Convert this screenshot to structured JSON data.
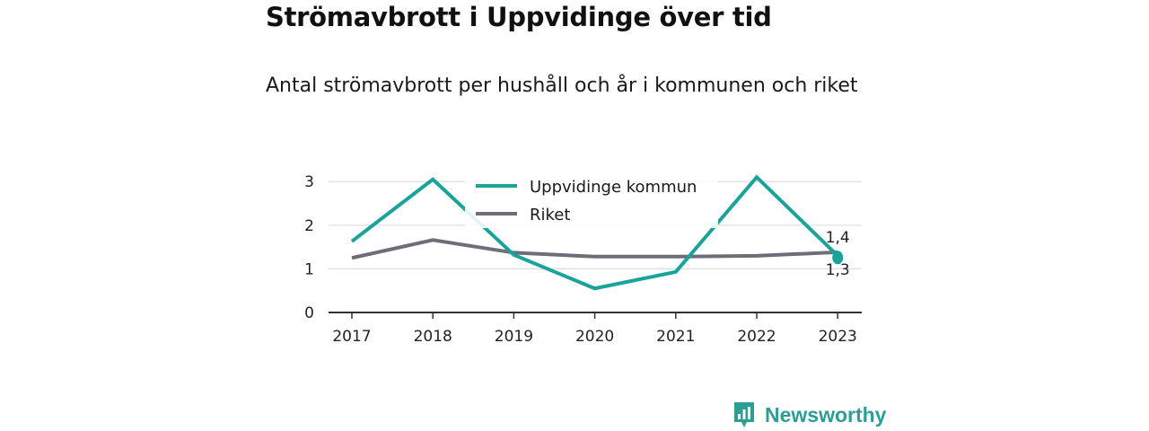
{
  "header": {
    "title": "Strömavbrott i Uppvidinge över tid",
    "subtitle": "Antal strömavbrott per hushåll och år i kommunen och riket"
  },
  "chart_data": {
    "type": "line",
    "x": [
      "2017",
      "2018",
      "2019",
      "2020",
      "2021",
      "2022",
      "2023"
    ],
    "ylim": [
      0,
      3
    ],
    "yticks": [
      "0",
      "1",
      "2",
      "3"
    ],
    "grid": true,
    "legend_position": "top-center",
    "series": [
      {
        "name": "Uppvidinge kommun",
        "color": "#1aa39a",
        "values": [
          1.63,
          3.05,
          1.32,
          0.55,
          0.93,
          3.1,
          1.3
        ],
        "end_label": "1,3"
      },
      {
        "name": "Riket",
        "color": "#6e6e78",
        "values": [
          1.25,
          1.66,
          1.37,
          1.28,
          1.28,
          1.3,
          1.38
        ],
        "end_label": "1,4"
      }
    ]
  },
  "brand": {
    "name": "Newsworthy",
    "icon": "newsworthy-logo-icon",
    "color": "#2e9e94"
  }
}
